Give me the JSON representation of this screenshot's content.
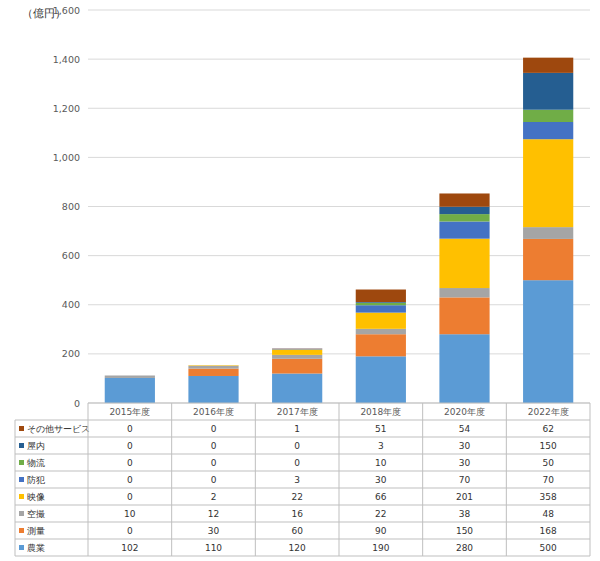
{
  "chart_data": {
    "type": "bar",
    "stacked": true,
    "grid": true,
    "ylabel": "（億円）",
    "categories": [
      "2015年度",
      "2016年度",
      "2017年度",
      "2018年度",
      "2020年度",
      "2022年度"
    ],
    "series": [
      {
        "name": "農業",
        "color": "#5b9bd5",
        "values": [
          102,
          110,
          120,
          190,
          280,
          500
        ]
      },
      {
        "name": "測量",
        "color": "#ed7d31",
        "values": [
          0,
          30,
          60,
          90,
          150,
          168
        ]
      },
      {
        "name": "空撮",
        "color": "#a5a5a5",
        "values": [
          10,
          12,
          16,
          22,
          38,
          48
        ]
      },
      {
        "name": "映像",
        "color": "#ffc000",
        "values": [
          0,
          2,
          22,
          66,
          201,
          358
        ]
      },
      {
        "name": "防犯",
        "color": "#4472c4",
        "values": [
          0,
          0,
          3,
          30,
          70,
          70
        ]
      },
      {
        "name": "物流",
        "color": "#70ad47",
        "values": [
          0,
          0,
          0,
          10,
          30,
          50
        ]
      },
      {
        "name": "屋内",
        "color": "#255e91",
        "values": [
          0,
          0,
          0,
          3,
          30,
          150
        ]
      },
      {
        "name": "その他サービス",
        "color": "#9e480e",
        "values": [
          0,
          0,
          1,
          51,
          54,
          62
        ]
      }
    ],
    "ylim": [
      0,
      1600
    ],
    "yticks": [
      0,
      200,
      400,
      600,
      800,
      {
        "value": 1000,
        "label": "1,000"
      },
      {
        "value": 1200,
        "label": "1,200"
      },
      {
        "value": 1400,
        "label": "1,400"
      },
      {
        "value": 1600,
        "label": "1,600"
      }
    ]
  }
}
